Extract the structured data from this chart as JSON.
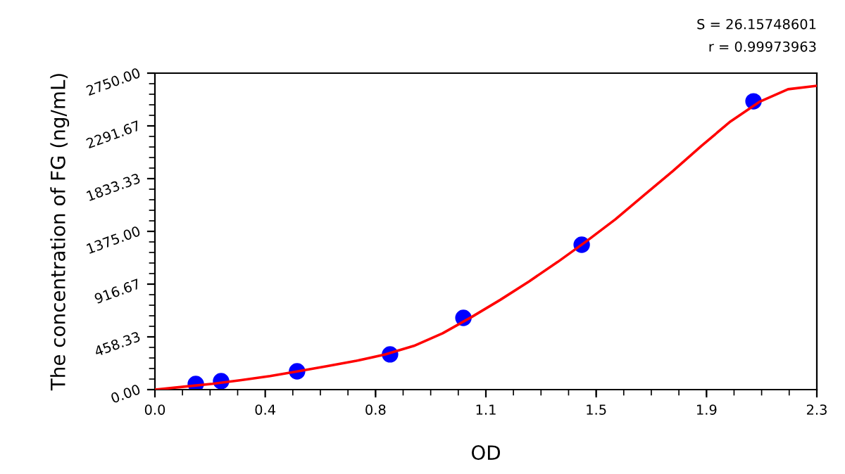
{
  "chart_data": {
    "type": "scatter",
    "xlabel": "OD",
    "ylabel": "The concentration of FG (ng/mL)",
    "annotations": [
      "S = 26.15748601",
      "r = 0.99973963"
    ],
    "series": [
      {
        "type": "line",
        "marker": "none",
        "color": "#ff0000",
        "x": [
          0,
          0.1,
          0.2,
          0.3,
          0.4,
          0.5,
          0.6,
          0.7,
          0.8,
          0.9,
          1.0,
          1.1,
          1.2,
          1.3,
          1.4,
          1.5,
          1.6,
          1.7,
          1.8,
          1.9,
          2.0,
          2.1,
          2.2,
          2.3
        ],
        "values": [
          0,
          25,
          50,
          82,
          118,
          160,
          205,
          250,
          305,
          380,
          490,
          630,
          780,
          940,
          1110,
          1290,
          1480,
          1690,
          1900,
          2120,
          2330,
          2500,
          2610,
          2640
        ]
      },
      {
        "marker": "circle",
        "color": "#0000ff",
        "x": [
          0.142,
          0.23,
          0.494,
          0.817,
          1.072,
          1.483,
          2.08
        ],
        "values": [
          49,
          73,
          159,
          306,
          623,
          1259,
          2505
        ]
      }
    ],
    "xlim": [
      0,
      2.3
    ],
    "xticks": [
      {
        "value": 0,
        "label": "0.0"
      },
      {
        "value": 0.3833,
        "label": "0.4"
      },
      {
        "value": 0.7667,
        "label": "0.8"
      },
      {
        "value": 1.15,
        "label": "1.1"
      },
      {
        "value": 1.5333,
        "label": "1.5"
      },
      {
        "value": 1.9167,
        "label": "1.9"
      },
      {
        "value": 2.3,
        "label": "2.3"
      }
    ],
    "ylim": [
      0,
      2750
    ],
    "yticks": [
      {
        "value": 0,
        "label": "0.00"
      },
      {
        "value": 458.33,
        "label": "458.33"
      },
      {
        "value": 916.67,
        "label": "916.67"
      },
      {
        "value": 1375,
        "label": "1375.00"
      },
      {
        "value": 1833.33,
        "label": "1833.33"
      },
      {
        "value": 2291.67,
        "label": "2291.67"
      },
      {
        "value": 2750,
        "label": "2750.00"
      }
    ],
    "grid": false
  }
}
